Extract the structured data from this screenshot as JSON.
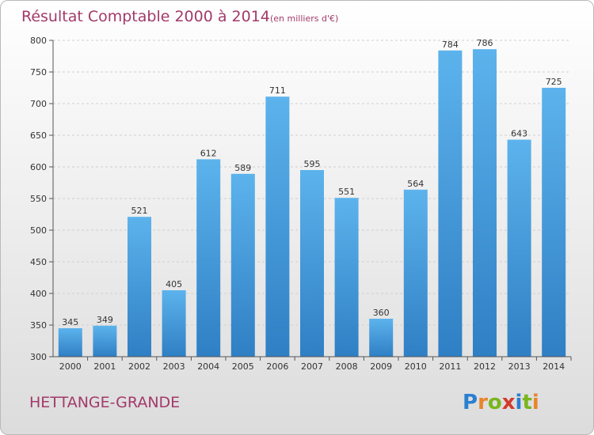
{
  "chart_data": {
    "type": "bar",
    "title": "Résultat Comptable 2000 à 2014",
    "subtitle": "(en milliers d'€)",
    "categories": [
      "2000",
      "2001",
      "2002",
      "2003",
      "2004",
      "2005",
      "2006",
      "2007",
      "2008",
      "2009",
      "2010",
      "2011",
      "2012",
      "2013",
      "2014"
    ],
    "values": [
      345,
      349,
      521,
      405,
      612,
      589,
      711,
      595,
      551,
      360,
      564,
      784,
      786,
      643,
      725
    ],
    "ylim": [
      300,
      800
    ],
    "yticks": [
      300,
      350,
      400,
      450,
      500,
      550,
      600,
      650,
      700,
      750,
      800
    ],
    "grid": true,
    "bar_color_top": "#5cb3ec",
    "bar_color_bottom": "#2f7fc4"
  },
  "footer": {
    "commune": "HETTANGE-GRANDE",
    "logo_letters": [
      "P",
      "r",
      "o",
      "x",
      "i",
      "t",
      "i"
    ],
    "logo_colors": [
      "#2b7fd0",
      "#e8842a",
      "#7ab51d",
      "#d23b2c",
      "#2b7fd0",
      "#7ab51d",
      "#e8842a"
    ]
  }
}
